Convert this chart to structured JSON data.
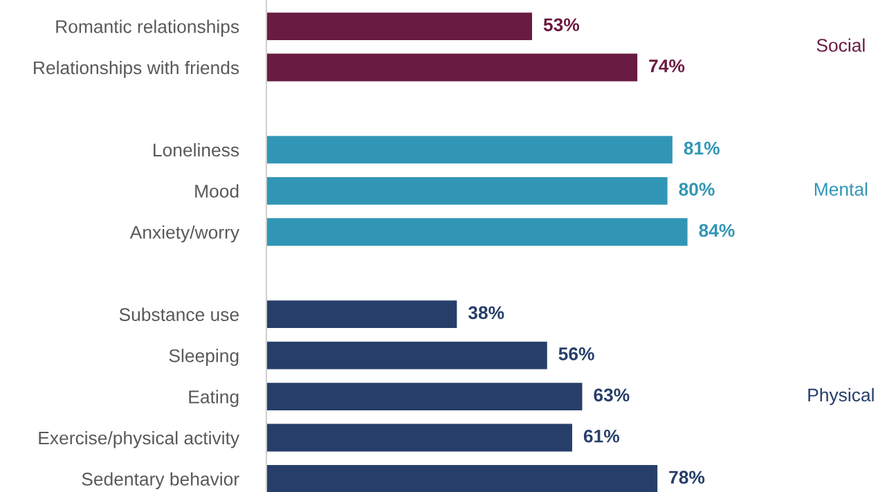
{
  "chart_data": {
    "type": "bar",
    "orientation": "horizontal",
    "categories": [
      "Romantic relationships",
      "Relationships with friends",
      null,
      "Loneliness",
      "Mood",
      "Anxiety/worry",
      null,
      "Substance use",
      "Sleeping",
      "Eating",
      "Exercise/physical activity",
      "Sedentary behavior"
    ],
    "series": [
      {
        "name": "Social",
        "color": "#6a1b41",
        "values": [
          53,
          74,
          null,
          null,
          null,
          null,
          null,
          null,
          null,
          null,
          null,
          null
        ],
        "value_labels": [
          "53%",
          "74%",
          null,
          null,
          null,
          null,
          null,
          null,
          null,
          null,
          null,
          null
        ]
      },
      {
        "name": "Mental",
        "color": "#3196b5",
        "values": [
          null,
          null,
          null,
          81,
          80,
          84,
          null,
          null,
          null,
          null,
          null,
          null
        ],
        "value_labels": [
          null,
          null,
          null,
          "81%",
          "80%",
          "84%",
          null,
          null,
          null,
          null,
          null,
          null
        ]
      },
      {
        "name": "Physical",
        "color": "#263e69",
        "values": [
          null,
          null,
          null,
          null,
          null,
          null,
          null,
          38,
          56,
          63,
          61,
          78
        ],
        "value_labels": [
          null,
          null,
          null,
          null,
          null,
          null,
          null,
          "38%",
          "56%",
          "63%",
          "61%",
          "78%"
        ]
      }
    ],
    "tick_labels": "y",
    "grid": false,
    "legend": false
  }
}
